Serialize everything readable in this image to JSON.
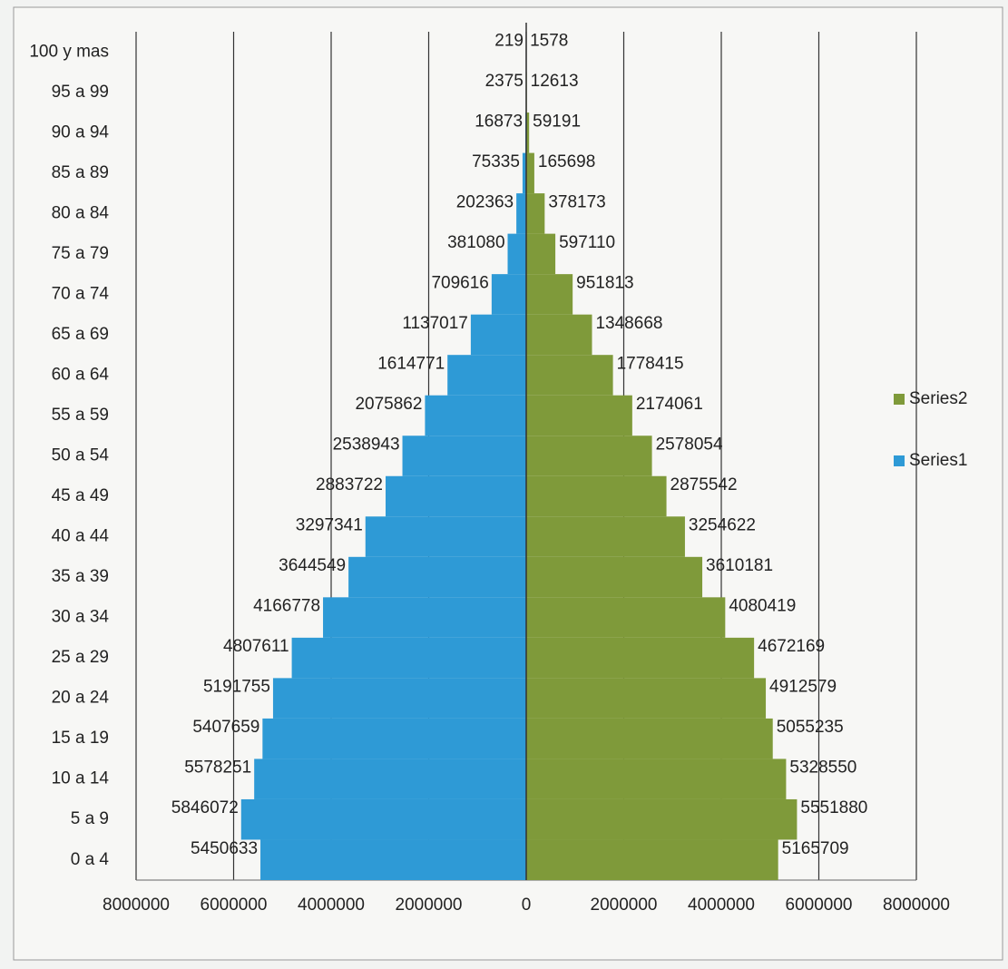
{
  "chart_data": {
    "type": "pyramid",
    "categories": [
      "0 a 4",
      "5 a 9",
      "10 a 14",
      "15 a 19",
      "20 a 24",
      "25 a 29",
      "30 a 34",
      "35 a 39",
      "40 a 44",
      "45 a 49",
      "50 a 54",
      "55 a 59",
      "60 a 64",
      "65 a 69",
      "70 a 74",
      "75 a 79",
      "80 a 84",
      "85 a 89",
      "90 a 94",
      "95 a 99",
      "100 y mas"
    ],
    "series": [
      {
        "name": "Series1",
        "color": "#2e9ad6",
        "values": [
          -5450633,
          -5846072,
          -5578251,
          -5407659,
          -5191755,
          -4807611,
          -4166778,
          -3644549,
          -3297341,
          -2883722,
          -2538943,
          -2075862,
          -1614771,
          -1137017,
          -709616,
          -381080,
          -202363,
          -75335,
          -16873,
          -2375,
          -219
        ],
        "value_labels": [
          "5450633",
          "5846072",
          "5578251",
          "5407659",
          "5191755",
          "4807611",
          "4166778",
          "3644549",
          "3297341",
          "2883722",
          "2538943",
          "2075862",
          "1614771",
          "1137017",
          "709616",
          "381080",
          "202363",
          "75335",
          "16873",
          "2375",
          "219"
        ]
      },
      {
        "name": "Series2",
        "color": "#7f9a3a",
        "values": [
          5165709,
          5551880,
          5328550,
          5055235,
          4912579,
          4672169,
          4080419,
          3610181,
          3254622,
          2875542,
          2578054,
          2174061,
          1778415,
          1348668,
          951813,
          597110,
          378173,
          165698,
          59191,
          12613,
          1578
        ]
      }
    ],
    "xlim": [
      -8000000,
      8000000
    ],
    "xticks": [
      {
        "value": -8000000,
        "label": "8000000"
      },
      {
        "value": -6000000,
        "label": "6000000"
      },
      {
        "value": -4000000,
        "label": "4000000"
      },
      {
        "value": -2000000,
        "label": "2000000"
      },
      0,
      2000000,
      4000000,
      6000000,
      8000000
    ],
    "grid": true,
    "legend": "right"
  }
}
